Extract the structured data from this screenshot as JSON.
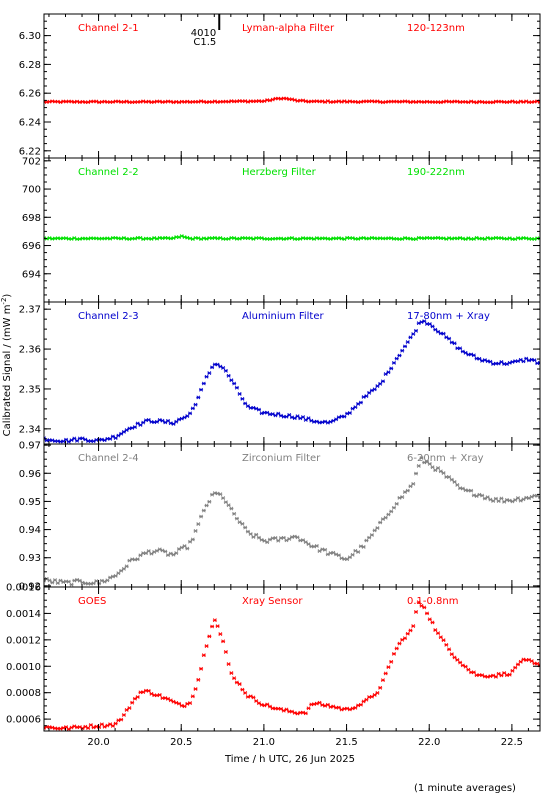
{
  "page": {
    "ylabel": "Calibrated Signal / (mW m",
    "ylabel_sup": "-2",
    "ylabel_close": ")",
    "xlabel": "Time / h UTC, 26 Jun 2025",
    "footnote": "(1 minute averages)",
    "event_marker": {
      "line1": "4010",
      "line2": "C1.5",
      "x": 20.73
    }
  },
  "colors": {
    "red": "#ff0000",
    "green": "#00e000",
    "blue": "#0000cc",
    "gray": "#808080"
  },
  "chart_data": [
    {
      "type": "scatter",
      "label_left": "Channel 2-1",
      "label_mid": "Lyman-alpha Filter",
      "label_right": "120-123nm",
      "color": "#ff0000",
      "xlim": [
        19.67,
        22.67
      ],
      "ylim": [
        6.215,
        6.315
      ],
      "yticks": [
        6.22,
        6.24,
        6.26,
        6.28,
        6.3
      ],
      "ytick_labels": [
        "6.22",
        "6.24",
        "6.26",
        "6.28",
        "6.30"
      ],
      "x": [
        19.67,
        20.5,
        21.0,
        21.05,
        21.1,
        21.15,
        21.2,
        21.3,
        22.0,
        22.67
      ],
      "y": [
        6.254,
        6.254,
        6.2545,
        6.2555,
        6.2565,
        6.256,
        6.2548,
        6.2542,
        6.254,
        6.254
      ],
      "noise": 0.0004
    },
    {
      "type": "scatter",
      "label_left": "Channel 2-2",
      "label_mid": "Herzberg Filter",
      "label_right": "190-222nm",
      "color": "#00e000",
      "xlim": [
        19.67,
        22.67
      ],
      "ylim": [
        692.0,
        702.2
      ],
      "yticks": [
        694,
        696,
        698,
        700,
        702
      ],
      "ytick_labels": [
        "694",
        "696",
        "698",
        "700",
        "702"
      ],
      "x": [
        19.67,
        20.45,
        20.5,
        20.55,
        21.0,
        22.67
      ],
      "y": [
        696.5,
        696.5,
        696.65,
        696.5,
        696.5,
        696.5
      ],
      "noise": 0.05
    },
    {
      "type": "scatter",
      "label_left": "Channel 2-3",
      "label_mid": "Aluminium Filter",
      "label_right": "17-80nm + Xray",
      "color": "#0000cc",
      "xlim": [
        19.67,
        22.67
      ],
      "ylim": [
        2.3362,
        2.3718
      ],
      "yticks": [
        2.34,
        2.35,
        2.36,
        2.37
      ],
      "ytick_labels": [
        "2.34",
        "2.35",
        "2.36",
        "2.37"
      ],
      "x": [
        19.67,
        19.8,
        19.9,
        20.0,
        20.1,
        20.2,
        20.3,
        20.35,
        20.45,
        20.55,
        20.6,
        20.65,
        20.7,
        20.75,
        20.8,
        20.9,
        21.0,
        21.1,
        21.2,
        21.3,
        21.4,
        21.5,
        21.6,
        21.7,
        21.8,
        21.9,
        21.95,
        22.0,
        22.1,
        22.2,
        22.3,
        22.4,
        22.5,
        22.6,
        22.67
      ],
      "y": [
        2.3375,
        2.337,
        2.3375,
        2.337,
        2.338,
        2.3405,
        2.342,
        2.342,
        2.3415,
        2.3435,
        2.3475,
        2.3525,
        2.3565,
        2.3555,
        2.3525,
        2.3455,
        2.344,
        2.3435,
        2.343,
        2.342,
        2.3415,
        2.3435,
        2.3475,
        2.351,
        2.3575,
        2.3635,
        2.3672,
        2.3665,
        2.363,
        2.3595,
        2.3575,
        2.3565,
        2.3565,
        2.3575,
        2.3565
      ],
      "noise": 0.0004
    },
    {
      "type": "scatter",
      "label_left": "Channel 2-4",
      "label_mid": "Zirconium Filter",
      "label_right": "6-20nm + Xray",
      "color": "#808080",
      "xlim": [
        19.67,
        22.67
      ],
      "ylim": [
        0.9196,
        0.9704
      ],
      "yticks": [
        0.92,
        0.93,
        0.94,
        0.95,
        0.96,
        0.97
      ],
      "ytick_labels": [
        "0.92",
        "0.93",
        "0.94",
        "0.95",
        "0.96",
        "0.97"
      ],
      "x": [
        19.67,
        19.8,
        19.9,
        20.0,
        20.1,
        20.2,
        20.3,
        20.35,
        20.45,
        20.55,
        20.6,
        20.65,
        20.7,
        20.75,
        20.8,
        20.9,
        21.0,
        21.1,
        21.2,
        21.3,
        21.4,
        21.5,
        21.6,
        21.7,
        21.8,
        21.9,
        21.95,
        22.0,
        22.1,
        22.2,
        22.3,
        22.4,
        22.5,
        22.6,
        22.67
      ],
      "y": [
        0.922,
        0.921,
        0.9215,
        0.921,
        0.9235,
        0.929,
        0.932,
        0.9325,
        0.931,
        0.9345,
        0.941,
        0.9485,
        0.9528,
        0.952,
        0.947,
        0.939,
        0.936,
        0.9365,
        0.9375,
        0.934,
        0.9315,
        0.9295,
        0.934,
        0.9415,
        0.9495,
        0.956,
        0.9648,
        0.9635,
        0.959,
        0.954,
        0.9525,
        0.9505,
        0.9505,
        0.9515,
        0.952
      ],
      "noise": 0.0008
    },
    {
      "type": "scatter",
      "label_left": "GOES",
      "label_mid": "Xray Sensor",
      "label_right": "0.1-0.8nm",
      "color": "#ff0000",
      "xlim": [
        19.67,
        22.67
      ],
      "ylim": [
        0.00051,
        0.0016
      ],
      "yticks": [
        0.0006,
        0.0008,
        0.001,
        0.0012,
        0.0014,
        0.0016
      ],
      "ytick_labels": [
        "0.0006",
        "0.0008",
        "0.0010",
        "0.0012",
        "0.0014",
        "0.0016"
      ],
      "x": [
        19.67,
        19.8,
        19.9,
        20.0,
        20.1,
        20.15,
        20.2,
        20.25,
        20.3,
        20.4,
        20.5,
        20.55,
        20.6,
        20.65,
        20.7,
        20.75,
        20.8,
        20.9,
        21.0,
        21.1,
        21.2,
        21.25,
        21.3,
        21.4,
        21.5,
        21.6,
        21.7,
        21.75,
        21.8,
        21.85,
        21.9,
        21.93,
        21.97,
        22.05,
        22.15,
        22.25,
        22.3,
        22.4,
        22.5,
        22.55,
        22.6,
        22.67
      ],
      "y": [
        0.00054,
        0.00053,
        0.00054,
        0.00055,
        0.00056,
        0.00062,
        0.00072,
        0.0008,
        0.00081,
        0.00076,
        0.0007,
        0.00072,
        0.00088,
        0.00115,
        0.00137,
        0.0012,
        0.00095,
        0.00078,
        0.00071,
        0.00067,
        0.00065,
        0.00065,
        0.00072,
        0.0007,
        0.00067,
        0.00072,
        0.00082,
        0.00098,
        0.00113,
        0.00122,
        0.00128,
        0.00148,
        0.00145,
        0.00125,
        0.00108,
        0.00096,
        0.00093,
        0.00093,
        0.00095,
        0.00104,
        0.00104,
        0.001
      ],
      "noise": 1.2e-05
    }
  ]
}
